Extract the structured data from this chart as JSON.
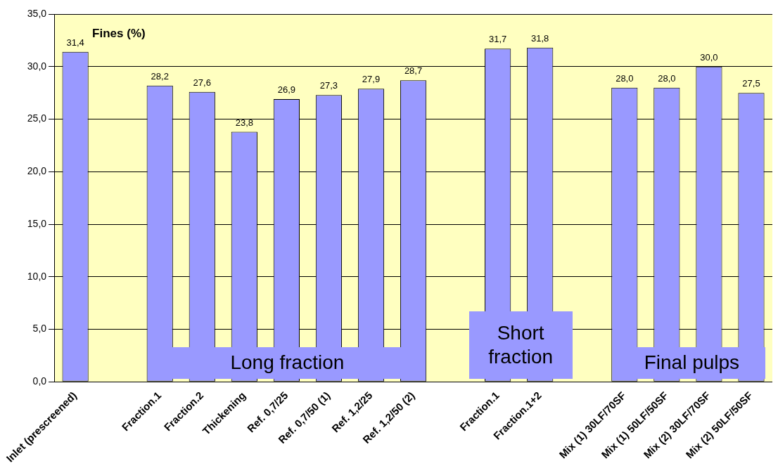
{
  "chart_data": {
    "type": "bar",
    "ylabel": "Fines (%)",
    "categories": [
      "Inlet (prescreened)",
      null,
      "Fraction.1",
      "Fraction.2",
      "Thickening",
      "Ref. 0,7/25",
      "Ref. 0,7/50 (1)",
      "Ref. 1,2/25",
      "Ref. 1,2/50 (2)",
      null,
      "Fraction.1",
      "Fraction.1+2",
      null,
      "Mix (1) 30LF/70SF",
      "Mix (1) 50LF/50SF",
      "Mix (2) 30LF/70SF",
      "Mix (2) 50LF/50SF"
    ],
    "values": [
      31.4,
      null,
      28.2,
      27.6,
      23.8,
      26.9,
      27.3,
      27.9,
      28.7,
      null,
      31.7,
      31.8,
      null,
      28.0,
      28.0,
      30.0,
      27.5
    ],
    "value_labels": [
      "31,4",
      null,
      "28,2",
      "27,6",
      "23,8",
      "26,9",
      "27,3",
      "27,9",
      "28,7",
      null,
      "31,7",
      "31,8",
      null,
      "28,0",
      "28,0",
      "30,0",
      "27,5"
    ],
    "color": "#9999ff",
    "ylim": [
      0,
      35
    ],
    "yticks": [
      {
        "value": 0,
        "label": "0,0"
      },
      {
        "value": 5,
        "label": "5,0"
      },
      {
        "value": 10,
        "label": "10,0"
      },
      {
        "value": 15,
        "label": "15,0"
      },
      {
        "value": 20,
        "label": "20,0"
      },
      {
        "value": 25,
        "label": "25,0"
      },
      {
        "value": 30,
        "label": "30,0"
      },
      {
        "value": 35,
        "label": "35,0"
      }
    ],
    "grid": "y",
    "legend": false,
    "annotations": [
      "Long fraction",
      "Short fraction",
      "Final pulps"
    ]
  }
}
